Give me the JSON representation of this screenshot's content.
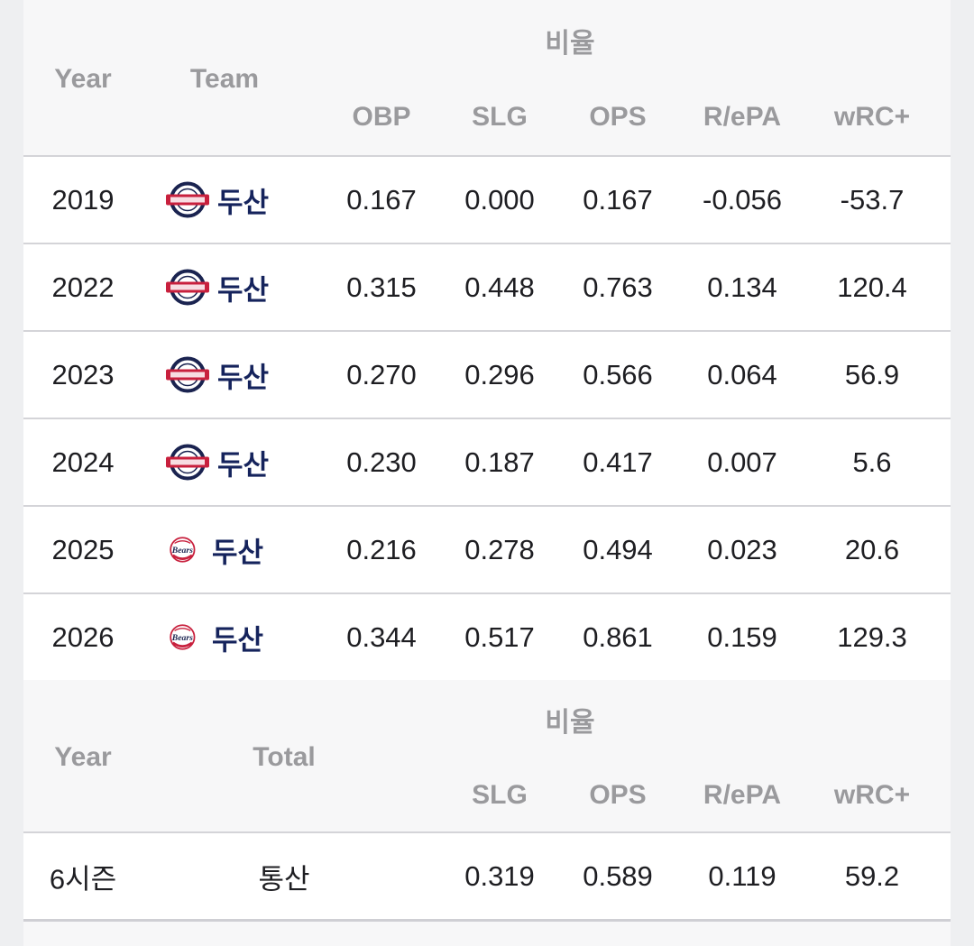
{
  "table1": {
    "group_header": "비율",
    "headers": {
      "year": "Year",
      "team": "Team",
      "obp": "OBP",
      "slg": "SLG",
      "ops": "OPS",
      "repa": "R/ePA",
      "wrc": "wRC+"
    },
    "rows": [
      {
        "year": "2019",
        "team": "두산",
        "logo": "bears-old-logo-icon",
        "obp": "0.167",
        "slg": "0.000",
        "ops": "0.167",
        "repa": "-0.056",
        "wrc": "-53.7"
      },
      {
        "year": "2022",
        "team": "두산",
        "logo": "bears-old-logo-icon",
        "obp": "0.315",
        "slg": "0.448",
        "ops": "0.763",
        "repa": "0.134",
        "wrc": "120.4"
      },
      {
        "year": "2023",
        "team": "두산",
        "logo": "bears-old-logo-icon",
        "obp": "0.270",
        "slg": "0.296",
        "ops": "0.566",
        "repa": "0.064",
        "wrc": "56.9"
      },
      {
        "year": "2024",
        "team": "두산",
        "logo": "bears-old-logo-icon",
        "obp": "0.230",
        "slg": "0.187",
        "ops": "0.417",
        "repa": "0.007",
        "wrc": "5.6"
      },
      {
        "year": "2025",
        "team": "두산",
        "logo": "bears-new-logo-icon",
        "obp": "0.216",
        "slg": "0.278",
        "ops": "0.494",
        "repa": "0.023",
        "wrc": "20.6"
      },
      {
        "year": "2026",
        "team": "두산",
        "logo": "bears-new-logo-icon",
        "obp": "0.344",
        "slg": "0.517",
        "ops": "0.861",
        "repa": "0.159",
        "wrc": "129.3"
      }
    ]
  },
  "table2": {
    "group_header": "비율",
    "headers": {
      "year": "Year",
      "total": "Total",
      "slg": "SLG",
      "ops": "OPS",
      "repa": "R/ePA",
      "wrc": "wRC+"
    },
    "row": {
      "year": "6시즌",
      "total": "통산",
      "slg": "0.319",
      "ops": "0.589",
      "repa": "0.119",
      "wrc": "59.2"
    }
  },
  "colors": {
    "team_name": "#15235c",
    "header_text": "#9a9a9d",
    "logo_red": "#c8203d",
    "logo_navy": "#1a2350"
  }
}
